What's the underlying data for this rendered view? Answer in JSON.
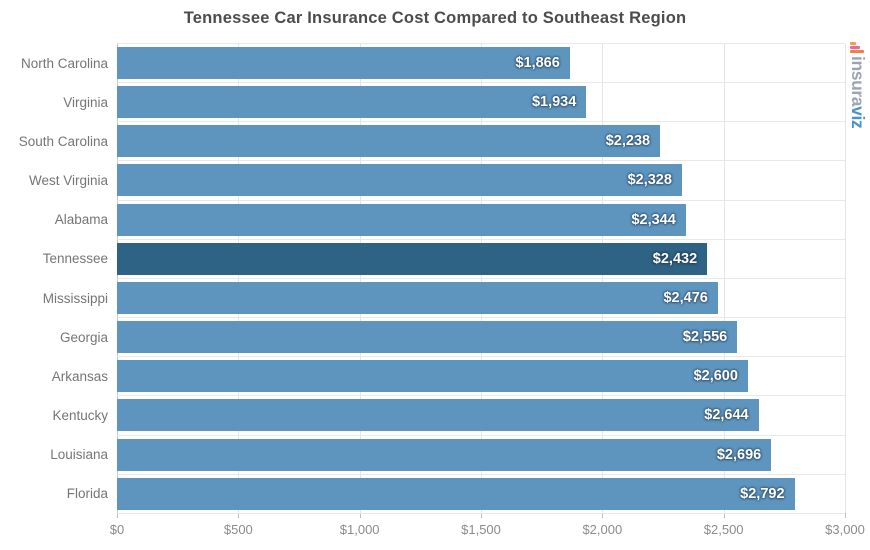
{
  "title": "Tennessee Car Insurance Cost Compared to Southeast Region",
  "chart_data": {
    "type": "bar",
    "orientation": "horizontal",
    "title": "Tennessee Car Insurance Cost Compared to Southeast Region",
    "categories": [
      "North Carolina",
      "Virginia",
      "South Carolina",
      "West Virginia",
      "Alabama",
      "Tennessee",
      "Mississippi",
      "Georgia",
      "Arkansas",
      "Kentucky",
      "Louisiana",
      "Florida"
    ],
    "values": [
      1866,
      1934,
      2238,
      2328,
      2344,
      2432,
      2476,
      2556,
      2600,
      2644,
      2696,
      2792
    ],
    "value_labels": [
      "$1,866",
      "$1,934",
      "$2,238",
      "$2,328",
      "$2,344",
      "$2,432",
      "$2,476",
      "$2,556",
      "$2,600",
      "$2,644",
      "$2,696",
      "$2,792"
    ],
    "highlight_category": "Tennessee",
    "xlabel": "",
    "ylabel": "",
    "xlim": [
      0,
      3000
    ],
    "x_tick_values": [
      0,
      500,
      1000,
      1500,
      2000,
      2500,
      3000
    ],
    "x_tick_labels": [
      "$0",
      "$500",
      "$1,000",
      "$1,500",
      "$2,000",
      "$2,500",
      "$3,000"
    ],
    "grid": true,
    "legend": "none"
  },
  "colors": {
    "bar": "#5e95bf",
    "highlight_bar": "#2e6385",
    "value_text": "#ffffff",
    "gridline": "#e4e4e4",
    "category_text": "#757575",
    "tick_text": "#8b8b8b",
    "title_text": "#4c4c4c"
  },
  "logo": {
    "icon": "bar-chart-icon",
    "text_primary": "insura",
    "text_secondary": "viz",
    "primary_color": "#9aa4b2",
    "secondary_color": "#4b92ca",
    "icon_colors": [
      "#f59d4f",
      "#ea6a9b",
      "#f08045"
    ]
  }
}
